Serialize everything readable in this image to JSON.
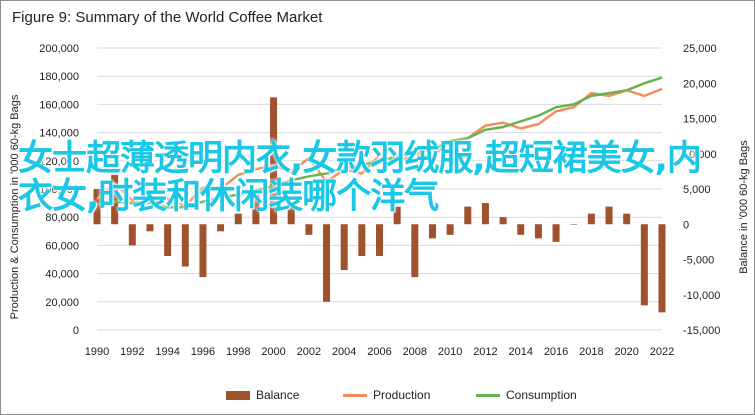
{
  "chart_data": {
    "type": "bar",
    "title": "Figure 9: Summary of the World Coffee Market",
    "ylabel_left": "Production & Consumption in '000 60-kg Bags",
    "ylabel_right": "Balance in '000 60-kg Bags",
    "x": [
      1990,
      1991,
      1992,
      1993,
      1994,
      1995,
      1996,
      1997,
      1998,
      1999,
      2000,
      2001,
      2002,
      2003,
      2004,
      2005,
      2006,
      2007,
      2008,
      2009,
      2010,
      2011,
      2012,
      2013,
      2014,
      2015,
      2016,
      2017,
      2018,
      2019,
      2020,
      2021,
      2022
    ],
    "x_tick_labels": [
      "1990",
      "1992",
      "1994",
      "1996",
      "1998",
      "2000",
      "2002",
      "2004",
      "2006",
      "2008",
      "2010",
      "2012",
      "2014",
      "2016",
      "2018",
      "2020",
      "2022"
    ],
    "left_ylim": [
      0,
      200000
    ],
    "left_ticks": [
      "0",
      "20,000",
      "40,000",
      "60,000",
      "80,000",
      "100,000",
      "120,000",
      "140,000",
      "160,000",
      "180,000",
      "200,000"
    ],
    "right_ylim": [
      -15000,
      25000
    ],
    "right_ticks": [
      "-15,000",
      "-10,000",
      "-5,000",
      "0",
      "5,000",
      "10,000",
      "15,000",
      "20,000",
      "25,000"
    ],
    "series": [
      {
        "name": "Balance",
        "kind": "bar",
        "color": "#a0522d",
        "values": [
          5000,
          7000,
          -3000,
          -1000,
          -4500,
          -6000,
          -7500,
          -1000,
          1500,
          4500,
          18000,
          3000,
          -1500,
          -11000,
          -6500,
          -4500,
          -4500,
          2500,
          -7500,
          -2000,
          -1500,
          2500,
          3000,
          1000,
          -1500,
          -2000,
          -2500,
          0,
          1500,
          2500,
          1500,
          -11500,
          -12500
        ]
      },
      {
        "name": "Production",
        "kind": "line",
        "color": "#f28e5b",
        "values": [
          93000,
          104000,
          92000,
          91000,
          93000,
          88000,
          101000,
          100000,
          110000,
          114000,
          117000,
          112000,
          122000,
          105000,
          114000,
          111000,
          124000,
          119000,
          125000,
          123000,
          134000,
          136000,
          145000,
          147000,
          143000,
          146000,
          155000,
          158000,
          168000,
          166000,
          170000,
          166000,
          171000
        ]
      },
      {
        "name": "Consumption",
        "kind": "line",
        "color": "#6ab150",
        "values": [
          89000,
          91000,
          90000,
          90000,
          87000,
          87000,
          91000,
          94000,
          96000,
          99000,
          102000,
          106000,
          109000,
          111000,
          115000,
          117000,
          120000,
          123000,
          126000,
          128000,
          134000,
          136000,
          142000,
          144000,
          148000,
          152000,
          158000,
          160000,
          166000,
          168000,
          170000,
          175000,
          179000
        ]
      }
    ],
    "legend_position": "bottom",
    "grid": "horizontal"
  },
  "overlay_text": "女士超薄透明内衣,女款羽绒服,超短裙美女,内衣女,时装和休闲装哪个洋气"
}
